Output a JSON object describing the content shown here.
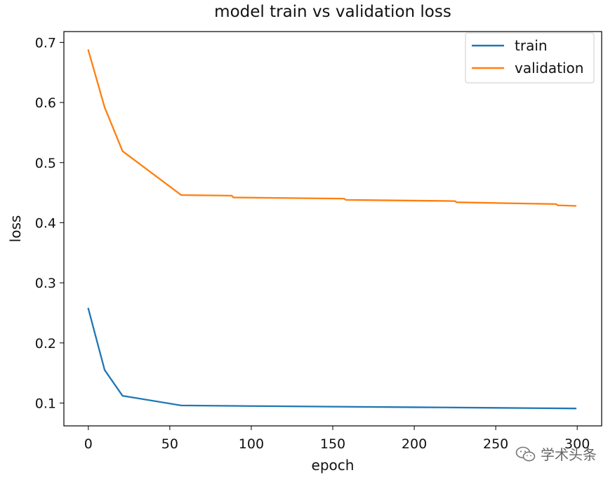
{
  "chart_data": {
    "type": "line",
    "title": "model train vs validation loss",
    "xlabel": "epoch",
    "ylabel": "loss",
    "xlim": [
      -15,
      315
    ],
    "ylim": [
      0.062,
      0.718
    ],
    "xticks": [
      0,
      50,
      100,
      150,
      200,
      250,
      300
    ],
    "yticks": [
      0.1,
      0.2,
      0.3,
      0.4,
      0.5,
      0.6,
      0.7
    ],
    "xtick_labels": [
      "0",
      "50",
      "100",
      "150",
      "200",
      "250",
      "300"
    ],
    "ytick_labels": [
      "0.1",
      "0.2",
      "0.3",
      "0.4",
      "0.5",
      "0.6",
      "0.7"
    ],
    "legend_position": "top-right",
    "series": [
      {
        "name": "train",
        "color": "#1f77b4",
        "x": [
          0,
          10,
          21,
          57,
          100,
          150,
          200,
          250,
          299
        ],
        "y": [
          0.257,
          0.155,
          0.112,
          0.096,
          0.095,
          0.094,
          0.093,
          0.092,
          0.091
        ]
      },
      {
        "name": "validation",
        "color": "#ff7f0e",
        "x": [
          0,
          10,
          21,
          57,
          88,
          89,
          157,
          158,
          225,
          226,
          287,
          288,
          299
        ],
        "y": [
          0.687,
          0.592,
          0.519,
          0.446,
          0.445,
          0.442,
          0.44,
          0.438,
          0.436,
          0.434,
          0.431,
          0.429,
          0.428
        ]
      }
    ]
  },
  "watermark": {
    "text": "学术头条",
    "icon": "wechat-icon"
  }
}
